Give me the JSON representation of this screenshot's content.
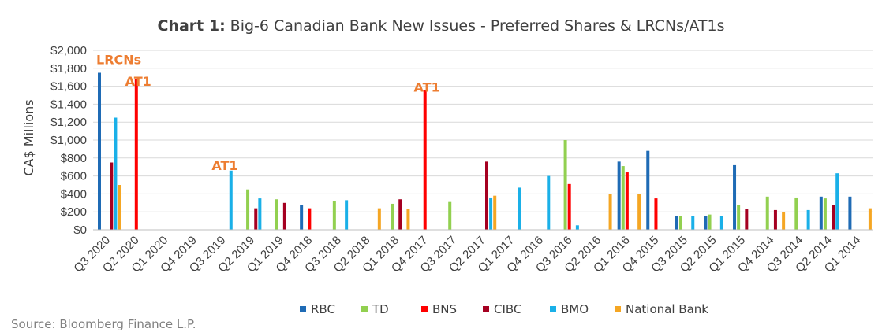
{
  "chart_data": {
    "type": "bar",
    "title_prefix": "Chart 1:",
    "title_main": "Big-6 Canadian Bank New Issues - Preferred Shares & LRCNs/AT1s",
    "ylabel": "CA$ Millions",
    "xlabel": "",
    "ylim": [
      0,
      2000
    ],
    "yticks": [
      "$0",
      "$200",
      "$400",
      "$600",
      "$800",
      "$1,000",
      "$1,200",
      "$1,400",
      "$1,600",
      "$1,800",
      "$2,000"
    ],
    "grid": true,
    "legend": "bottom",
    "categories": [
      "Q3 2020",
      "Q2 2020",
      "Q1 2020",
      "Q4 2019",
      "Q3 2019",
      "Q2 2019",
      "Q1 2019",
      "Q4 2018",
      "Q3 2018",
      "Q2 2018",
      "Q1 2018",
      "Q4 2017",
      "Q3 2017",
      "Q2 2017",
      "Q1 2017",
      "Q4 2016",
      "Q3 2016",
      "Q2 2016",
      "Q1 2016",
      "Q4 2015",
      "Q3 2015",
      "Q2 2015",
      "Q1 2015",
      "Q4 2014",
      "Q3 2014",
      "Q2 2014",
      "Q1 2014"
    ],
    "series": [
      {
        "name": "RBC",
        "color": "#1F6BB5",
        "values": [
          1750,
          0,
          0,
          0,
          0,
          0,
          0,
          280,
          0,
          0,
          0,
          0,
          0,
          0,
          0,
          0,
          0,
          0,
          760,
          880,
          150,
          150,
          720,
          0,
          0,
          370,
          370
        ]
      },
      {
        "name": "TD",
        "color": "#92D050",
        "values": [
          0,
          0,
          0,
          0,
          0,
          450,
          340,
          0,
          320,
          0,
          290,
          0,
          310,
          0,
          0,
          0,
          1000,
          0,
          710,
          0,
          150,
          170,
          280,
          370,
          360,
          350,
          0
        ]
      },
      {
        "name": "BNS",
        "color": "#FF0000",
        "values": [
          0,
          1680,
          0,
          0,
          0,
          0,
          0,
          240,
          0,
          0,
          0,
          1560,
          0,
          0,
          0,
          0,
          510,
          0,
          640,
          350,
          0,
          0,
          0,
          0,
          0,
          0,
          0
        ]
      },
      {
        "name": "CIBC",
        "color": "#A50021",
        "values": [
          750,
          0,
          0,
          0,
          0,
          240,
          300,
          0,
          0,
          0,
          340,
          0,
          0,
          760,
          0,
          0,
          0,
          0,
          0,
          0,
          0,
          0,
          230,
          220,
          0,
          280,
          0
        ]
      },
      {
        "name": "BMO",
        "color": "#1AB0E8",
        "values": [
          1250,
          0,
          0,
          0,
          660,
          350,
          0,
          0,
          330,
          0,
          0,
          0,
          0,
          360,
          470,
          600,
          50,
          0,
          0,
          0,
          150,
          150,
          0,
          0,
          220,
          630,
          0
        ]
      },
      {
        "name": "National Bank",
        "color": "#F5A623",
        "values": [
          500,
          0,
          0,
          0,
          0,
          0,
          0,
          0,
          0,
          240,
          230,
          0,
          0,
          380,
          0,
          0,
          0,
          400,
          400,
          0,
          0,
          0,
          0,
          200,
          0,
          0,
          240
        ]
      }
    ],
    "annotations": [
      {
        "text": "LRCNs",
        "category": "Q3 2020",
        "value": 1900
      },
      {
        "text": "AT1",
        "category": "Q2 2020",
        "value": 1660
      },
      {
        "text": "AT1",
        "category": "Q3 2019",
        "value": 720
      },
      {
        "text": "AT1",
        "category": "Q4 2017",
        "value": 1590
      }
    ],
    "source": "Source: Bloomberg Finance L.P."
  }
}
